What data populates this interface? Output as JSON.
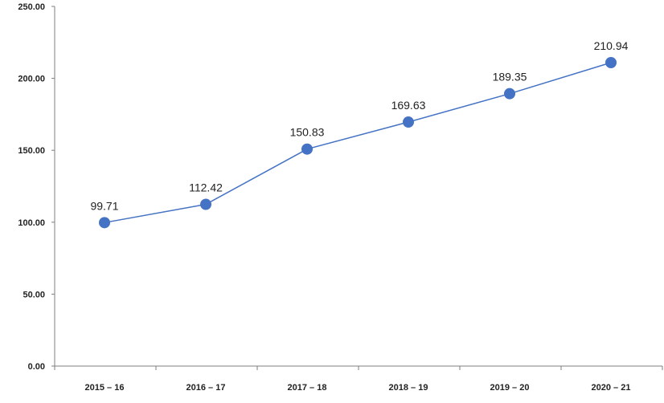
{
  "chart_data": {
    "type": "line",
    "title": "",
    "xlabel": "",
    "ylabel": "",
    "categories": [
      "2015 – 16",
      "2016 – 17",
      "2017 – 18",
      "2018 – 19",
      "2019 – 20",
      "2020 – 21"
    ],
    "series": [
      {
        "values": [
          99.71,
          112.42,
          150.83,
          169.63,
          189.35,
          210.94
        ],
        "data_labels": [
          "99.71",
          "112.42",
          "150.83",
          "169.63",
          "189.35",
          "210.94"
        ]
      }
    ],
    "ylim": [
      0,
      250
    ],
    "yticks": [
      0,
      50,
      100,
      150,
      200,
      250
    ],
    "ytick_labels": [
      "0.00",
      "50.00",
      "100.00",
      "150.00",
      "200.00",
      "250.00"
    ],
    "grid": false,
    "legend": "none",
    "colors": {
      "line": "#4472C4",
      "marker": "#4472C4",
      "axis": "#7f7f7f"
    }
  }
}
